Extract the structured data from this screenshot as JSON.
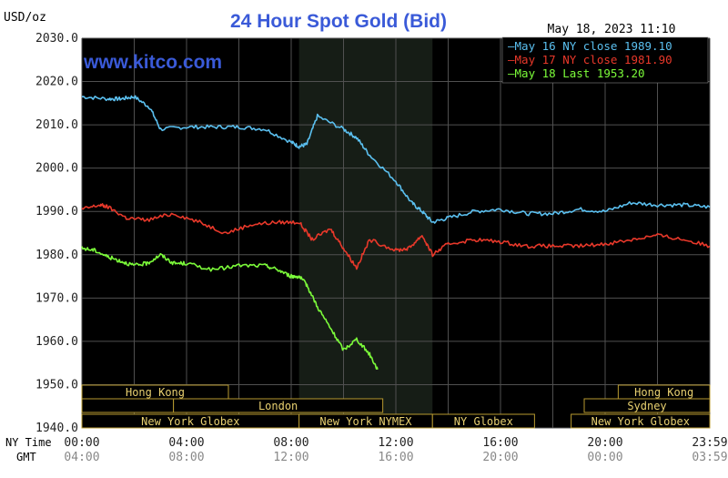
{
  "header": {
    "title": "24 Hour Spot Gold (Bid)",
    "unit": "USD/oz",
    "date": "May 18, 2023 11:10",
    "watermark": "www.kitco.com"
  },
  "legend": [
    {
      "label": "May 16 NY close 1989.10",
      "color": "#5bc0f0"
    },
    {
      "label": "May 17 NY close 1981.90",
      "color": "#e8382a"
    },
    {
      "label": "May 18 Last 1953.20",
      "color": "#7cfc3a"
    }
  ],
  "colors": {
    "background": "#000000",
    "grid": "#505050",
    "title": "#3a5ad8",
    "axis_text": "#222222",
    "session_text": "#e8d070",
    "session_box": "#b89a30",
    "session_highlight": "#161d16"
  },
  "axis_row_labels": {
    "ny_time": "NY Time",
    "gmt": "GMT"
  },
  "chart_data": {
    "type": "line",
    "title": "24 Hour Spot Gold (Bid)",
    "ylabel": "USD/oz",
    "ylim": [
      1940,
      2030
    ],
    "xlim_hours": [
      0,
      24
    ],
    "grid": true,
    "legend_position": "top-right",
    "y_ticks": [
      "1940.0",
      "1950.0",
      "1960.0",
      "1970.0",
      "1980.0",
      "1990.0",
      "2000.0",
      "2010.0",
      "2020.0",
      "2030.0"
    ],
    "x_ticks_ny": [
      "00:00",
      "04:00",
      "08:00",
      "12:00",
      "16:00",
      "20:00",
      "23:59"
    ],
    "x_ticks_gmt": [
      "04:00",
      "08:00",
      "12:00",
      "16:00",
      "20:00",
      "00:00",
      "03:59"
    ],
    "highlight_hours": [
      8.3,
      13.4
    ],
    "series": [
      {
        "name": "May 16 NY close 1989.10",
        "color": "#5bc0f0",
        "x": [
          0,
          1,
          1.5,
          2,
          2.6,
          3,
          4,
          5,
          6,
          7,
          8,
          8.3,
          8.6,
          9,
          10,
          10.5,
          11,
          12,
          12.6,
          13,
          13.4,
          14,
          15,
          16,
          17,
          18,
          19,
          20,
          21,
          22,
          23,
          24
        ],
        "y": [
          2016.5,
          2016,
          2016,
          2016.5,
          2014,
          2009,
          2009.5,
          2009.5,
          2009.5,
          2009,
          2006,
          2005,
          2005.5,
          2012,
          2009,
          2007,
          2003,
          1997,
          1992,
          1990,
          1987.5,
          1988.5,
          1990,
          1990.5,
          1989.5,
          1989.5,
          1990.5,
          1990,
          1992,
          1991.5,
          1991.5,
          1991
        ]
      },
      {
        "name": "May 17 NY close 1981.90",
        "color": "#e8382a",
        "x": [
          0,
          0.7,
          1,
          1.7,
          2.5,
          3.5,
          4.5,
          5.5,
          6.5,
          7.5,
          8.3,
          8.8,
          9.5,
          10,
          10.5,
          11,
          12,
          12.5,
          13,
          13.4,
          14,
          15,
          16,
          17,
          18,
          19,
          20,
          21,
          22,
          23,
          24
        ],
        "y": [
          1990.5,
          1991.5,
          1991,
          1988.5,
          1988,
          1989.5,
          1987.5,
          1985,
          1987,
          1987.5,
          1987.5,
          1983.5,
          1986,
          1981.5,
          1977,
          1983.5,
          1981,
          1981.5,
          1984.5,
          1980,
          1982.5,
          1983.5,
          1983,
          1982,
          1982,
          1982,
          1982.5,
          1983.5,
          1984.5,
          1983.5,
          1982
        ]
      },
      {
        "name": "May 18 Last 1953.20",
        "color": "#7cfc3a",
        "x": [
          0,
          0.5,
          1,
          1.5,
          2,
          2.5,
          3,
          3.5,
          4,
          5,
          6,
          7,
          7.5,
          8,
          8.3,
          8.6,
          9,
          9.5,
          10,
          10.5,
          11,
          11.3
        ],
        "y": [
          1981.5,
          1981,
          1979.5,
          1978.5,
          1977.5,
          1978,
          1980,
          1978,
          1978,
          1976.5,
          1977.5,
          1977.5,
          1976.5,
          1975,
          1975,
          1973,
          1968,
          1963,
          1958,
          1960.5,
          1957,
          1953.5
        ]
      }
    ]
  },
  "sessions": [
    {
      "label": "Hong Kong",
      "start_h": 0,
      "end_h": 5.6,
      "row": 0
    },
    {
      "label": "",
      "start_h": 0,
      "end_h": 3.5,
      "row": 1
    },
    {
      "label": "London",
      "start_h": 3.5,
      "end_h": 11.5,
      "row": 1
    },
    {
      "label": "New York Globex",
      "start_h": 0,
      "end_h": 8.3,
      "row": 2
    },
    {
      "label": "New York NYMEX",
      "start_h": 8.3,
      "end_h": 13.4,
      "row": 2
    },
    {
      "label": "NY Globex",
      "start_h": 13.4,
      "end_h": 17.3,
      "row": 2
    },
    {
      "label": "Hong Kong",
      "start_h": 20.5,
      "end_h": 24,
      "row": 0
    },
    {
      "label": "Sydney",
      "start_h": 19.2,
      "end_h": 24,
      "row": 1
    },
    {
      "label": "New York Globex",
      "start_h": 18.7,
      "end_h": 24,
      "row": 2
    }
  ]
}
